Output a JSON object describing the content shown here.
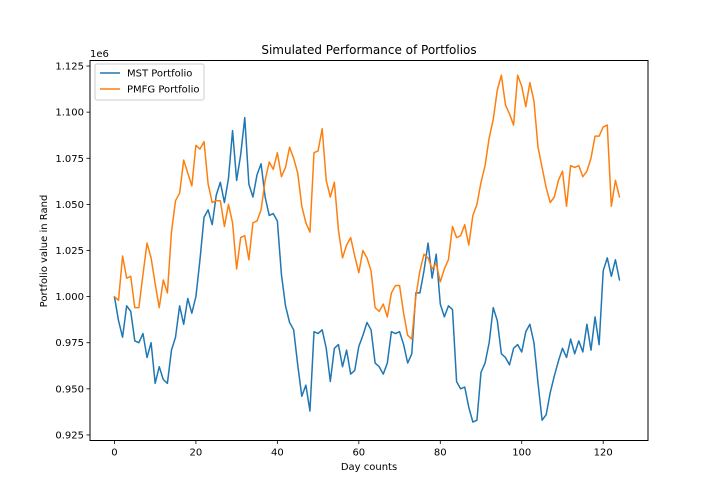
{
  "chart_data": {
    "type": "line",
    "title": "Simulated Performance of Portfolios",
    "xlabel": "Day counts",
    "ylabel": "Portfolio value in Rand",
    "y_offset_label": "1e6",
    "xlim": [
      -6,
      131
    ],
    "ylim": [
      0.922,
      1.128
    ],
    "x_ticks": [
      0,
      20,
      40,
      60,
      80,
      100,
      120
    ],
    "x_tick_labels": [
      "0",
      "20",
      "40",
      "60",
      "80",
      "100",
      "120"
    ],
    "y_ticks": [
      0.925,
      0.95,
      0.975,
      1.0,
      1.025,
      1.05,
      1.075,
      1.1,
      1.125
    ],
    "y_tick_labels": [
      "0.925",
      "0.950",
      "0.975",
      "1.000",
      "1.025",
      "1.050",
      "1.075",
      "1.100",
      "1.125"
    ],
    "grid": false,
    "legend_position": "upper-left",
    "series": [
      {
        "name": "MST Portfolio",
        "color": "#1f77b4",
        "values": [
          1.0,
          0.987,
          0.978,
          0.995,
          0.992,
          0.976,
          0.975,
          0.98,
          0.967,
          0.975,
          0.953,
          0.962,
          0.955,
          0.953,
          0.971,
          0.978,
          0.995,
          0.985,
          0.999,
          0.991,
          1.0,
          1.02,
          1.043,
          1.047,
          1.039,
          1.055,
          1.062,
          1.051,
          1.064,
          1.09,
          1.063,
          1.077,
          1.097,
          1.061,
          1.054,
          1.066,
          1.072,
          1.054,
          1.044,
          1.045,
          1.041,
          1.012,
          0.995,
          0.986,
          0.982,
          0.963,
          0.946,
          0.952,
          0.938,
          0.981,
          0.98,
          0.982,
          0.972,
          0.954,
          0.972,
          0.974,
          0.962,
          0.971,
          0.958,
          0.96,
          0.973,
          0.979,
          0.986,
          0.982,
          0.964,
          0.962,
          0.958,
          0.964,
          0.981,
          0.98,
          0.981,
          0.974,
          0.964,
          0.969,
          1.002,
          1.002,
          1.014,
          1.029,
          1.01,
          1.023,
          0.996,
          0.989,
          0.995,
          0.993,
          0.954,
          0.95,
          0.951,
          0.94,
          0.932,
          0.933,
          0.959,
          0.964,
          0.975,
          0.994,
          0.987,
          0.969,
          0.967,
          0.963,
          0.972,
          0.974,
          0.97,
          0.981,
          0.985,
          0.975,
          0.953,
          0.933,
          0.936,
          0.948,
          0.957,
          0.965,
          0.972,
          0.967,
          0.977,
          0.969,
          0.976,
          0.97,
          0.985,
          0.971,
          0.989,
          0.974,
          1.014,
          1.021,
          1.011,
          1.02,
          1.009
        ]
      },
      {
        "name": "PMFG Portfolio",
        "color": "#ff7f0e",
        "values": [
          1.0,
          0.998,
          1.022,
          1.01,
          1.011,
          0.994,
          0.994,
          1.012,
          1.029,
          1.021,
          1.007,
          0.994,
          1.009,
          1.002,
          1.035,
          1.052,
          1.056,
          1.074,
          1.067,
          1.06,
          1.082,
          1.08,
          1.084,
          1.061,
          1.051,
          1.052,
          1.052,
          1.038,
          1.05,
          1.04,
          1.015,
          1.032,
          1.033,
          1.02,
          1.04,
          1.041,
          1.047,
          1.063,
          1.073,
          1.069,
          1.078,
          1.065,
          1.07,
          1.081,
          1.075,
          1.067,
          1.049,
          1.04,
          1.035,
          1.078,
          1.079,
          1.091,
          1.063,
          1.054,
          1.062,
          1.036,
          1.021,
          1.028,
          1.032,
          1.022,
          1.013,
          1.025,
          1.021,
          1.014,
          0.994,
          0.992,
          0.996,
          0.989,
          1.002,
          1.006,
          1.006,
          0.991,
          0.979,
          0.977,
          1.0,
          1.014,
          1.023,
          1.021,
          1.015,
          1.018,
          1.008,
          1.015,
          1.02,
          1.038,
          1.032,
          1.033,
          1.039,
          1.028,
          1.044,
          1.05,
          1.062,
          1.071,
          1.086,
          1.096,
          1.112,
          1.12,
          1.104,
          1.099,
          1.093,
          1.12,
          1.114,
          1.103,
          1.116,
          1.106,
          1.081,
          1.07,
          1.059,
          1.051,
          1.054,
          1.063,
          1.068,
          1.049,
          1.071,
          1.07,
          1.071,
          1.065,
          1.068,
          1.075,
          1.087,
          1.087,
          1.092,
          1.093,
          1.049,
          1.063,
          1.054
        ]
      }
    ]
  }
}
